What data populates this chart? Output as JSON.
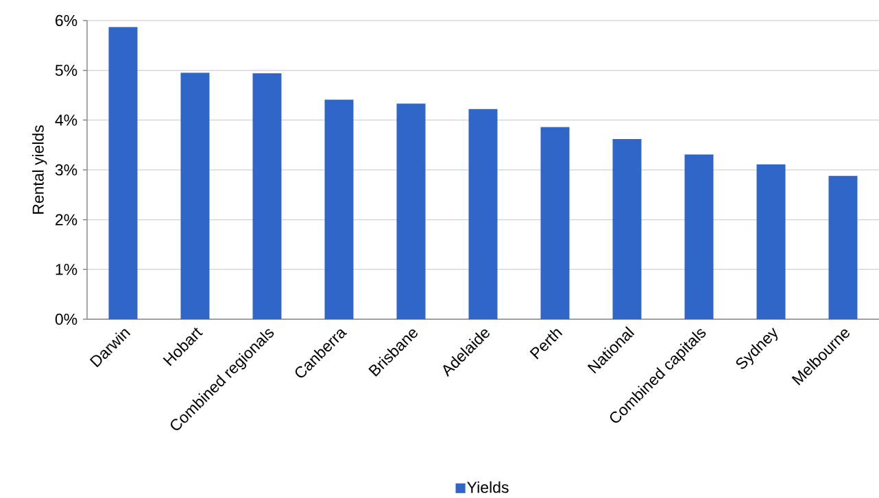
{
  "chart_data": {
    "type": "bar",
    "ylabel": "Rental yields",
    "categories": [
      "Darwin",
      "Hobart",
      "Combined regionals",
      "Canberra",
      "Brisbane",
      "Adelaide",
      "Perth",
      "National",
      "Combined capitals",
      "Sydney",
      "Melbourne"
    ],
    "series": [
      {
        "name": "Yields",
        "color": "#3166c9",
        "values": [
          5.87,
          4.95,
          4.94,
          4.41,
          4.33,
          4.22,
          3.86,
          3.62,
          3.31,
          3.11,
          2.88
        ]
      }
    ],
    "ylim": [
      0,
      6
    ],
    "yticks": [
      {
        "value": 0,
        "label": "0%"
      },
      {
        "value": 1,
        "label": "1%"
      },
      {
        "value": 2,
        "label": "2%"
      },
      {
        "value": 3,
        "label": "3%"
      },
      {
        "value": 4,
        "label": "4%"
      },
      {
        "value": 5,
        "label": "5%"
      },
      {
        "value": 6,
        "label": "6%"
      }
    ],
    "grid": "y",
    "legend": "bottom"
  }
}
